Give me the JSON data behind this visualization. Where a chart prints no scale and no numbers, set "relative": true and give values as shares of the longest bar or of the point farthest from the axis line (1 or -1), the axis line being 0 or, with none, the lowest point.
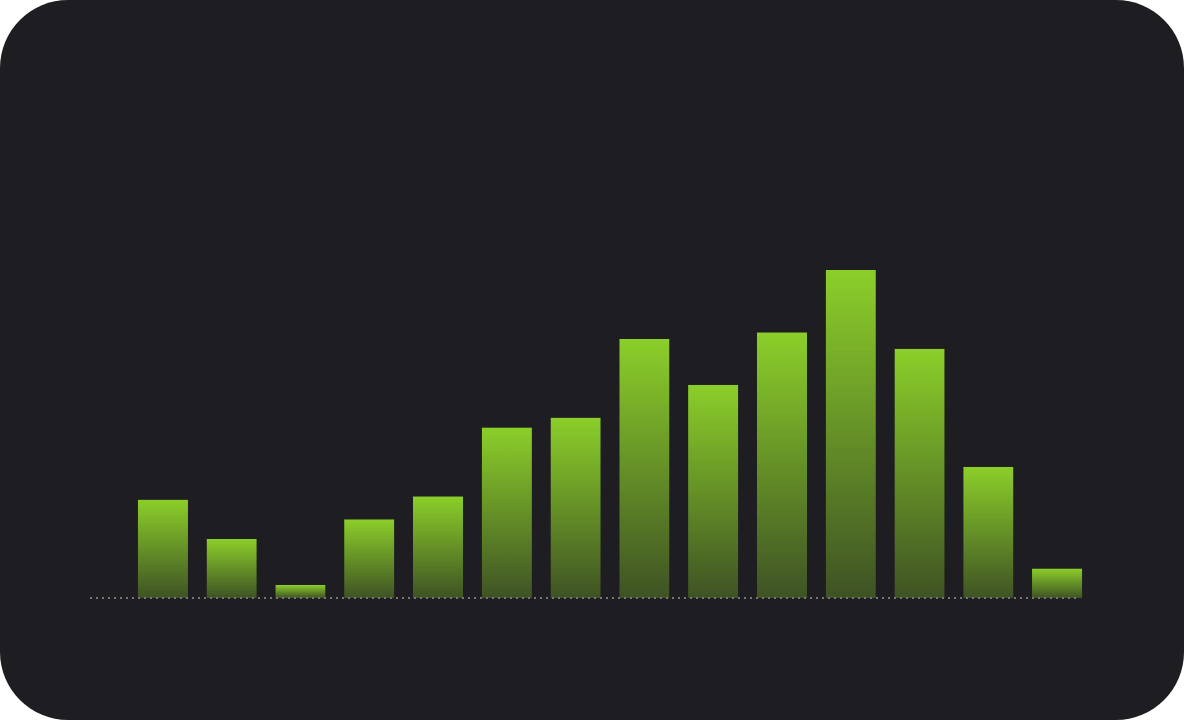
{
  "chart_data": {
    "type": "bar",
    "relative": true,
    "categories": [
      null,
      null,
      null,
      null,
      null,
      null,
      null,
      null,
      null,
      null,
      null,
      null,
      null,
      null
    ],
    "values": [
      0.3,
      0.18,
      0.04,
      0.24,
      0.31,
      0.52,
      0.55,
      0.79,
      0.65,
      0.81,
      1.0,
      0.76,
      0.4,
      0.09
    ],
    "color": "#8ccf2a"
  }
}
